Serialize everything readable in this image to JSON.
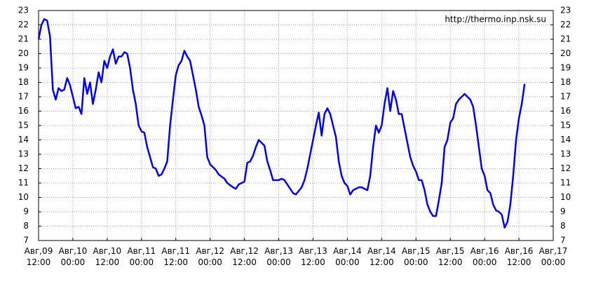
{
  "chart_data": {
    "type": "line",
    "annotation": "http://thermo.inp.nsk.su",
    "x": [
      "Авг,09 12:00",
      "Авг,09 13:00",
      "Авг,09 14:00",
      "Авг,09 15:00",
      "Авг,09 16:00",
      "Авг,09 17:00",
      "Авг,09 18:00",
      "Авг,09 19:00",
      "Авг,09 20:00",
      "Авг,09 21:00",
      "Авг,09 22:00",
      "Авг,09 23:00",
      "Авг,10 00:00",
      "Авг,10 01:00",
      "Авг,10 02:00",
      "Авг,10 03:00",
      "Авг,10 04:00",
      "Авг,10 05:00",
      "Авг,10 06:00",
      "Авг,10 07:00",
      "Авг,10 08:00",
      "Авг,10 09:00",
      "Авг,10 10:00",
      "Авг,10 11:00",
      "Авг,10 12:00",
      "Авг,10 13:00",
      "Авг,10 14:00",
      "Авг,10 15:00",
      "Авг,10 16:00",
      "Авг,10 17:00",
      "Авг,10 18:00",
      "Авг,10 19:00",
      "Авг,10 20:00",
      "Авг,10 21:00",
      "Авг,10 22:00",
      "Авг,10 23:00",
      "Авг,11 00:00",
      "Авг,11 01:00",
      "Авг,11 02:00",
      "Авг,11 03:00",
      "Авг,11 04:00",
      "Авг,11 05:00",
      "Авг,11 06:00",
      "Авг,11 07:00",
      "Авг,11 08:00",
      "Авг,11 09:00",
      "Авг,11 10:00",
      "Авг,11 11:00",
      "Авг,11 12:00",
      "Авг,11 13:00",
      "Авг,11 14:00",
      "Авг,11 15:00",
      "Авг,11 16:00",
      "Авг,11 17:00",
      "Авг,11 18:00",
      "Авг,11 19:00",
      "Авг,11 20:00",
      "Авг,11 21:00",
      "Авг,11 22:00",
      "Авг,11 23:00",
      "Авг,12 00:00",
      "Авг,12 02:00",
      "Авг,12 03:00",
      "Авг,12 05:00",
      "Авг,12 06:00",
      "Авг,12 08:00",
      "Авг,12 09:00",
      "Авг,12 10:00",
      "Авг,12 12:00",
      "Авг,12 13:00",
      "Авг,12 14:00",
      "Авг,12 15:00",
      "Авг,12 16:00",
      "Авг,12 17:00",
      "Авг,12 18:00",
      "Авг,12 19:00",
      "Авг,12 20:00",
      "Авг,12 21:00",
      "Авг,12 22:00",
      "Авг,13 00:00",
      "Авг,13 01:00",
      "Авг,13 02:00",
      "Авг,13 04:00",
      "Авг,13 05:00",
      "Авг,13 06:00",
      "Авг,13 08:00",
      "Авг,13 09:00",
      "Авг,13 10:00",
      "Авг,13 11:00",
      "Авг,13 12:00",
      "Авг,13 13:00",
      "Авг,13 14:00",
      "Авг,13 15:00",
      "Авг,13 16:00",
      "Авг,13 17:00",
      "Авг,13 18:00",
      "Авг,13 19:00",
      "Авг,13 20:00",
      "Авг,13 21:00",
      "Авг,13 22:00",
      "Авг,13 23:00",
      "Авг,14 00:00",
      "Авг,14 01:00",
      "Авг,14 02:00",
      "Авг,14 04:00",
      "Авг,14 05:00",
      "Авг,14 07:00",
      "Авг,14 08:00",
      "Авг,14 09:00",
      "Авг,14 10:00",
      "Авг,14 11:00",
      "Авг,14 12:00",
      "Авг,14 13:00",
      "Авг,14 14:00",
      "Авг,14 15:00",
      "Авг,14 16:00",
      "Авг,14 17:00",
      "Авг,14 18:00",
      "Авг,14 19:00",
      "Авг,14 20:00",
      "Авг,14 21:00",
      "Авг,14 22:00",
      "Авг,14 23:00",
      "Авг,15 00:00",
      "Авг,15 01:00",
      "Авг,15 02:00",
      "Авг,15 03:00",
      "Авг,15 04:00",
      "Авг,15 05:00",
      "Авг,15 06:00",
      "Авг,15 07:00",
      "Авг,15 08:00",
      "Авг,15 09:00",
      "Авг,15 10:00",
      "Авг,15 11:00",
      "Авг,15 12:00",
      "Авг,15 13:00",
      "Авг,15 14:00",
      "Авг,15 15:00",
      "Авг,15 16:00",
      "Авг,15 17:00",
      "Авг,15 18:00",
      "Авг,15 19:00",
      "Авг,15 20:00",
      "Авг,15 21:00",
      "Авг,15 22:00",
      "Авг,15 23:00",
      "Авг,16 00:00",
      "Авг,16 01:00",
      "Авг,16 02:00",
      "Авг,16 03:00",
      "Авг,16 04:00",
      "Авг,16 05:00",
      "Авг,16 06:00",
      "Авг,16 07:00",
      "Авг,16 08:00",
      "Авг,16 09:00",
      "Авг,16 10:00",
      "Авг,16 11:00",
      "Авг,16 12:00",
      "Авг,16 13:00",
      "Авг,16 14:00"
    ],
    "series": [
      {
        "color": "#0000ee",
        "values": [
          21.0,
          22.0,
          22.4,
          22.3,
          21.2,
          17.5,
          16.8,
          17.6,
          17.4,
          17.5,
          18.3,
          17.8,
          17.0,
          16.2,
          16.3,
          15.8,
          18.3,
          17.2,
          18.0,
          16.5,
          17.5,
          18.7,
          18.0,
          19.5,
          19.0,
          19.8,
          20.3,
          19.3,
          19.8,
          19.8,
          20.1,
          20.0,
          19.0,
          17.5,
          16.5,
          15.0,
          14.6,
          14.5,
          13.5,
          12.8,
          12.1,
          12.0,
          11.5,
          11.6,
          12.0,
          12.5,
          15.0,
          16.8,
          18.5,
          19.2,
          19.5,
          20.2,
          19.8,
          19.5,
          18.5,
          17.5,
          16.3,
          15.7,
          15.0,
          12.8,
          12.3,
          11.9,
          11.6,
          11.3,
          11.0,
          10.7,
          10.6,
          10.9,
          11.1,
          12.4,
          12.5,
          12.9,
          13.5,
          14.0,
          13.8,
          13.6,
          12.5,
          11.9,
          11.2,
          11.2,
          11.3,
          11.2,
          10.6,
          10.3,
          10.2,
          10.7,
          11.2,
          12.0,
          13.0,
          14.0,
          15.0,
          15.9,
          14.3,
          15.8,
          16.2,
          15.8,
          15.0,
          14.2,
          12.5,
          11.5,
          11.0,
          10.8,
          10.2,
          10.5,
          10.7,
          10.7,
          10.5,
          11.5,
          13.5,
          15.0,
          14.5,
          15.0,
          16.5,
          17.6,
          16.0,
          17.4,
          16.8,
          15.8,
          15.8,
          14.8,
          13.8,
          12.8,
          12.2,
          11.8,
          11.2,
          11.2,
          10.5,
          9.5,
          9.0,
          8.7,
          8.7,
          9.8,
          11.0,
          13.5,
          14.0,
          15.2,
          15.5,
          16.5,
          16.8,
          17.0,
          17.2,
          17.0,
          16.8,
          16.3,
          15.0,
          13.5,
          12.0,
          11.5,
          10.5,
          10.3,
          9.5,
          9.1,
          9.0,
          8.8,
          7.9,
          8.3,
          9.5,
          11.5,
          14.0,
          15.5,
          16.5,
          17.9
        ]
      }
    ],
    "xlim": [
      "Авг,09 12:00",
      "Авг,17 00:00"
    ],
    "xticks": [
      "Авг,09 12:00",
      "Авг,10 00:00",
      "Авг,10 12:00",
      "Авг,11 00:00",
      "Авг,11 12:00",
      "Авг,12 00:00",
      "Авг,12 12:00",
      "Авг,13 00:00",
      "Авг,13 12:00",
      "Авг,14 00:00",
      "Авг,14 12:00",
      "Авг,15 00:00",
      "Авг,15 12:00",
      "Авг,16 00:00",
      "Авг,16 12:00",
      "Авг,17 00:00"
    ],
    "ylim": [
      7,
      23
    ],
    "yticks": [
      7,
      8,
      9,
      10,
      11,
      12,
      13,
      14,
      15,
      16,
      17,
      18,
      19,
      20,
      21,
      22,
      23
    ],
    "grid": true
  }
}
